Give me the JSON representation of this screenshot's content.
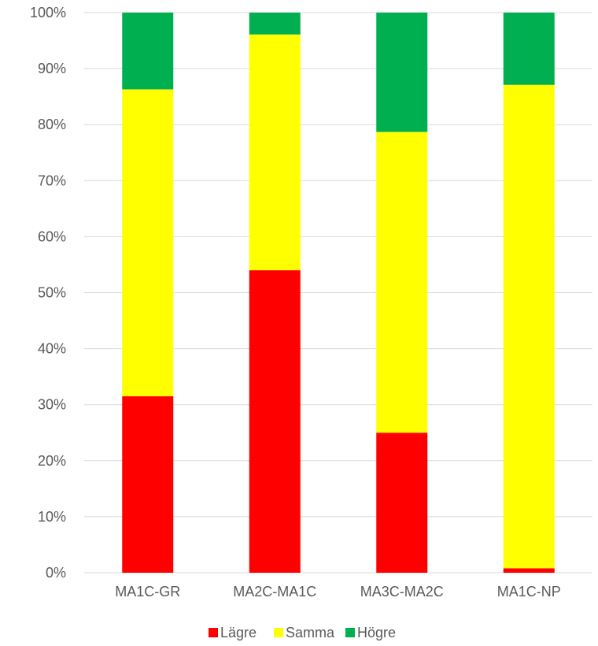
{
  "chart_data": {
    "type": "bar",
    "stacked": "percent",
    "categories": [
      "MA1C-GR",
      "MA2C-MA1C",
      "MA3C-MA2C",
      "MA1C-NP"
    ],
    "series": [
      {
        "name": "Lägre",
        "color": "#ff0000",
        "values": [
          31.5,
          54.0,
          25.0,
          0.8
        ]
      },
      {
        "name": "Samma",
        "color": "#ffff00",
        "values": [
          54.8,
          42.1,
          53.7,
          86.3
        ]
      },
      {
        "name": "Högre",
        "color": "#00b050",
        "values": [
          13.7,
          3.9,
          21.3,
          12.9
        ]
      }
    ],
    "yticks": [
      "0%",
      "10%",
      "20%",
      "30%",
      "40%",
      "50%",
      "60%",
      "70%",
      "80%",
      "90%",
      "100%"
    ],
    "ylim": [
      0,
      100
    ],
    "grid": true,
    "legend": "bottom",
    "title": "",
    "xlabel": "",
    "ylabel": ""
  }
}
